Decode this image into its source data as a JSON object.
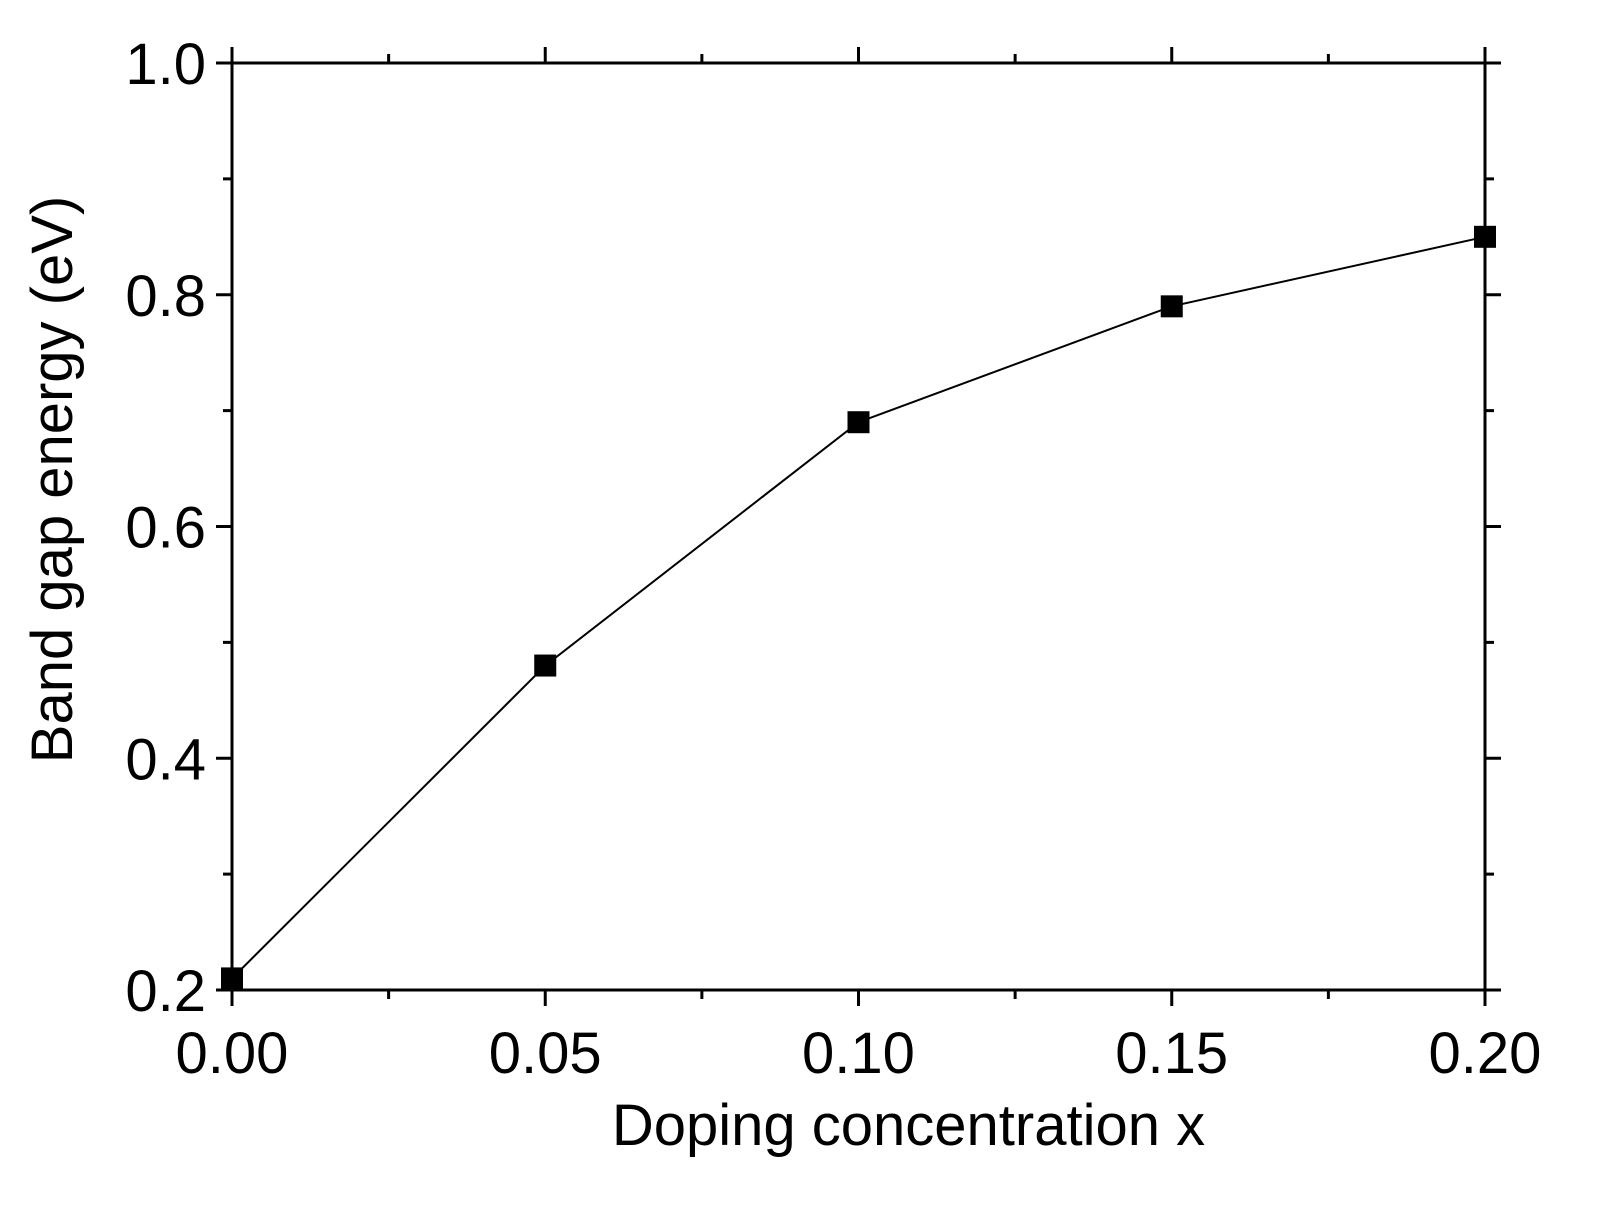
{
  "chart_data": {
    "type": "line",
    "title": "",
    "xlabel": "Doping concentration x",
    "ylabel": "Band gap energy (eV)",
    "xlim": [
      0.0,
      0.2
    ],
    "ylim": [
      0.2,
      1.0
    ],
    "x_ticks": [
      "0.00",
      "0.05",
      "0.10",
      "0.15",
      "0.20"
    ],
    "x_tick_values": [
      0.0,
      0.05,
      0.1,
      0.15,
      0.2
    ],
    "y_ticks": [
      "0.2",
      "0.4",
      "0.6",
      "0.8",
      "1.0"
    ],
    "y_tick_values": [
      0.2,
      0.4,
      0.6,
      0.8,
      1.0
    ],
    "grid": false,
    "legend": "none",
    "marker": "square",
    "color": "#000000",
    "series": [
      {
        "x": [
          0.0,
          0.05,
          0.1,
          0.15,
          0.2
        ],
        "y": [
          0.21,
          0.48,
          0.69,
          0.79,
          0.85
        ]
      }
    ]
  }
}
